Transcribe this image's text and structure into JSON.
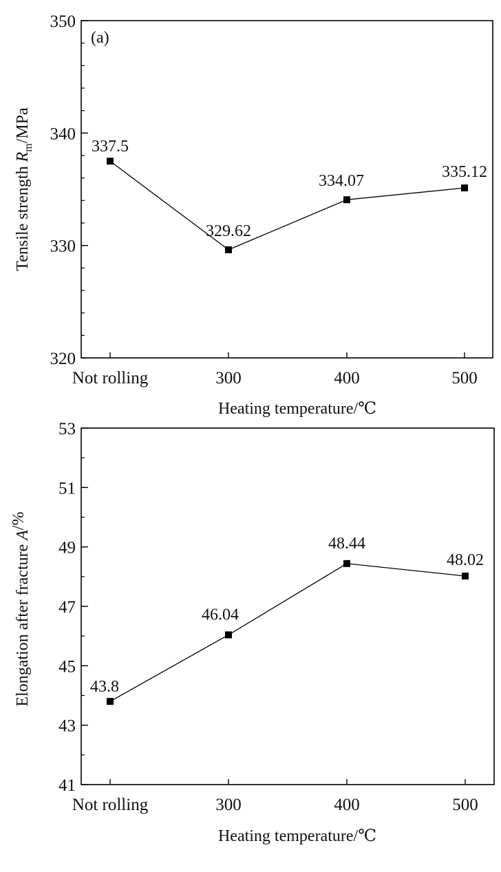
{
  "chart_data": [
    {
      "type": "line",
      "panel_label": "(a)",
      "categories": [
        "Not rolling",
        "300",
        "400",
        "500"
      ],
      "values": [
        337.5,
        329.62,
        334.07,
        335.12
      ],
      "data_labels": [
        "337.5",
        "329.62",
        "334.07",
        "335.12"
      ],
      "xlabel": "Heating temperature/℃",
      "ylabel_main": "Tensile strength ",
      "ylabel_italic": "R",
      "ylabel_sub": "m",
      "ylabel_tail": "/MPa",
      "ylim": [
        320,
        350
      ],
      "yticks": [
        "320",
        "330",
        "340",
        "350"
      ],
      "ytick_values": [
        320,
        330,
        340,
        350
      ],
      "minor_step": 2,
      "grid": false,
      "marker": "square",
      "color": "#000000"
    },
    {
      "type": "line",
      "panel_label": "",
      "categories": [
        "Not rolling",
        "300",
        "400",
        "500"
      ],
      "values": [
        43.8,
        46.04,
        48.44,
        48.02
      ],
      "data_labels": [
        "43.8",
        "46.04",
        "48.44",
        "48.02"
      ],
      "xlabel": "Heating temperature/℃",
      "ylabel_main": "Elongation after fracture ",
      "ylabel_italic": "A",
      "ylabel_sub": "",
      "ylabel_tail": "/%",
      "ylim": [
        41,
        53
      ],
      "yticks": [
        "41",
        "43",
        "45",
        "47",
        "49",
        "51",
        "53"
      ],
      "ytick_values": [
        41,
        43,
        45,
        47,
        49,
        51,
        53
      ],
      "minor_step": 1,
      "grid": false,
      "marker": "square",
      "color": "#000000"
    }
  ]
}
